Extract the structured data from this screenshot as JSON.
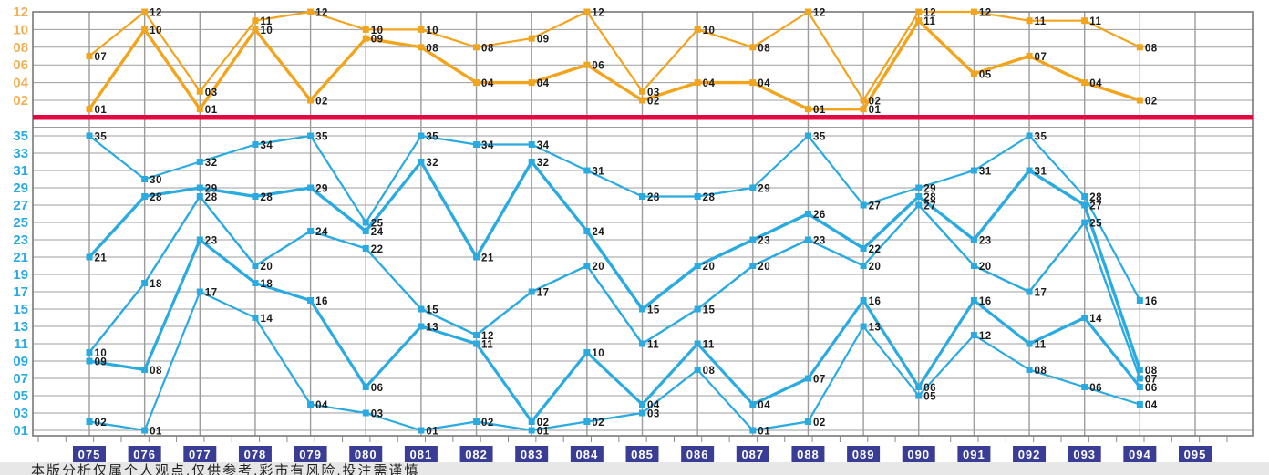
{
  "chart_data": {
    "type": "line",
    "x_labels": [
      "075",
      "076",
      "077",
      "078",
      "079",
      "080",
      "081",
      "082",
      "083",
      "084",
      "085",
      "086",
      "087",
      "088",
      "089",
      "090",
      "091",
      "092",
      "093",
      "094",
      "095"
    ],
    "front_zone": {
      "ylim": [
        1,
        35
      ],
      "ticks": [
        "35",
        "33",
        "31",
        "29",
        "27",
        "25",
        "23",
        "21",
        "19",
        "17",
        "15",
        "13",
        "11",
        "09",
        "07",
        "05",
        "03",
        "01"
      ]
    },
    "back_zone": {
      "ylim": [
        1,
        12
      ],
      "ticks": [
        "12",
        "10",
        "08",
        "06",
        "04",
        "02"
      ]
    },
    "draws": [
      {
        "period": "075",
        "front": [
          2,
          9,
          10,
          21,
          35
        ],
        "back": [
          1,
          7
        ]
      },
      {
        "period": "076",
        "front": [
          1,
          8,
          18,
          28,
          30
        ],
        "back": [
          10,
          12
        ]
      },
      {
        "period": "077",
        "front": [
          17,
          23,
          28,
          29,
          32
        ],
        "back": [
          1,
          3
        ]
      },
      {
        "period": "078",
        "front": [
          14,
          18,
          20,
          28,
          34
        ],
        "back": [
          10,
          11
        ]
      },
      {
        "period": "079",
        "front": [
          4,
          16,
          24,
          29,
          35
        ],
        "back": [
          2,
          12
        ]
      },
      {
        "period": "080",
        "front": [
          3,
          6,
          22,
          24,
          25
        ],
        "back": [
          9,
          10
        ]
      },
      {
        "period": "081",
        "front": [
          1,
          13,
          15,
          32,
          35
        ],
        "back": [
          8,
          10
        ]
      },
      {
        "period": "082",
        "front": [
          2,
          11,
          12,
          21,
          34
        ],
        "back": [
          4,
          8
        ]
      },
      {
        "period": "083",
        "front": [
          1,
          2,
          17,
          32,
          34
        ],
        "back": [
          4,
          9
        ]
      },
      {
        "period": "084",
        "front": [
          2,
          10,
          20,
          24,
          31
        ],
        "back": [
          6,
          12
        ]
      },
      {
        "period": "085",
        "front": [
          3,
          4,
          11,
          15,
          28
        ],
        "back": [
          2,
          3
        ]
      },
      {
        "period": "086",
        "front": [
          8,
          11,
          15,
          20,
          28
        ],
        "back": [
          4,
          10
        ]
      },
      {
        "period": "087",
        "front": [
          1,
          4,
          20,
          23,
          29
        ],
        "back": [
          4,
          8
        ]
      },
      {
        "period": "088",
        "front": [
          2,
          7,
          23,
          26,
          35
        ],
        "back": [
          1,
          12
        ]
      },
      {
        "period": "089",
        "front": [
          13,
          16,
          20,
          22,
          27
        ],
        "back": [
          1,
          2
        ]
      },
      {
        "period": "090",
        "front": [
          5,
          6,
          27,
          28,
          29
        ],
        "back": [
          11,
          12
        ]
      },
      {
        "period": "091",
        "front": [
          12,
          16,
          20,
          23,
          31
        ],
        "back": [
          5,
          12
        ]
      },
      {
        "period": "092",
        "front": [
          8,
          11,
          17,
          31,
          35
        ],
        "back": [
          7,
          11
        ]
      },
      {
        "period": "093",
        "front": [
          6,
          14,
          25,
          27,
          28
        ],
        "back": [
          4,
          11
        ]
      },
      {
        "period": "094",
        "front": [
          4,
          6,
          7,
          8,
          16
        ],
        "back": [
          2,
          8
        ]
      }
    ]
  },
  "footer": {
    "text": "本版分析仅属个人观点,仅供参考,彩市有风险,投注需谨慎"
  },
  "colors": {
    "front_line": "#29ABE2",
    "back_line": "#F2A41C",
    "divider": "#E30840",
    "period_box": "#3A3D96",
    "period_box_text": "#FFFFFF",
    "grid": "#9C9C9C",
    "border": "#787878",
    "front_axis_label": "#29ABE2",
    "back_axis_label": "#F0B055",
    "point_label": "#1A1A1A"
  }
}
